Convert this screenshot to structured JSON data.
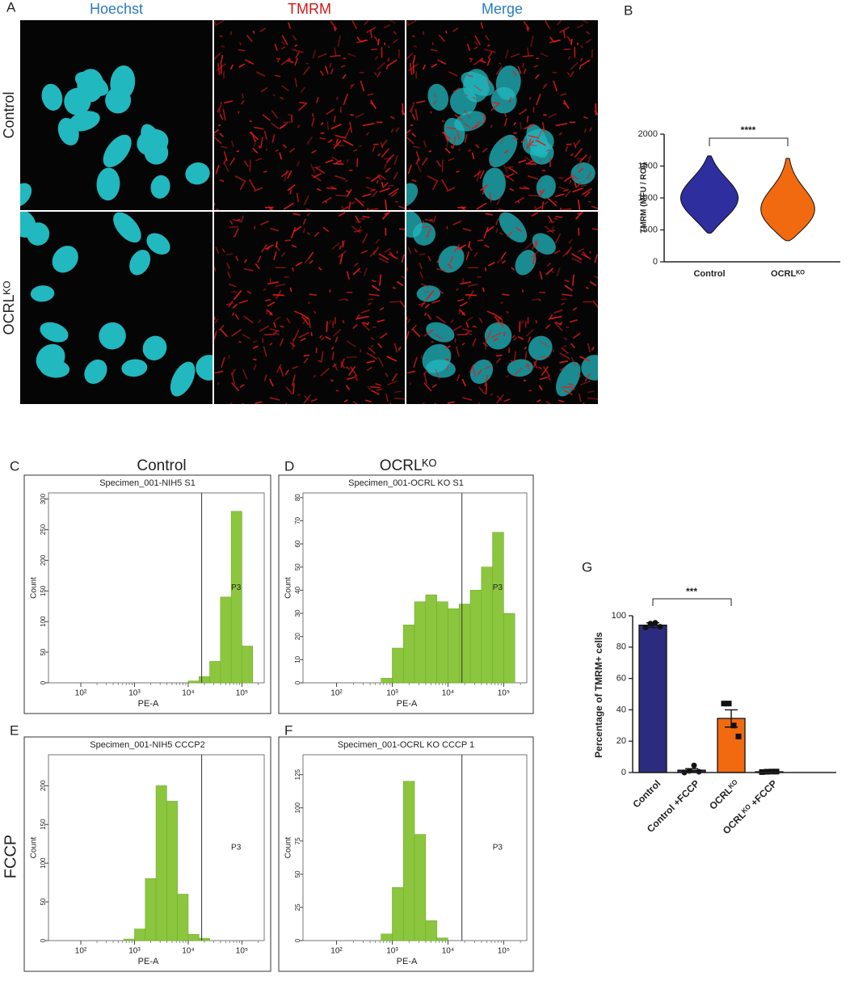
{
  "figure": {
    "letters": [
      "A",
      "B",
      "C",
      "D",
      "E",
      "F",
      "G"
    ],
    "image_headers": [
      "Hoechst",
      "TMRM",
      "Merge"
    ],
    "row_labels": [
      "Control",
      "OCRLᴷᴼ"
    ],
    "hist_headers": [
      "Control",
      "OCRLᴷᴼ"
    ],
    "fccp_label": "FCCP"
  },
  "chart_data": [
    {
      "type": "violin",
      "ylabel": "TMRM (MFU / ROI)",
      "categories": [
        "Control",
        "OCRLᴷᴼ"
      ],
      "series": [
        {
          "name": "Control",
          "color": "#2e2e9e",
          "range": [
            450,
            1660
          ]
        },
        {
          "name": "OCRLᴷᴼ",
          "color": "#f26a0f",
          "range": [
            330,
            1620
          ]
        }
      ],
      "ylim": [
        0,
        2000
      ],
      "yticks": [
        0,
        500,
        1000,
        1500,
        2000
      ],
      "significance": "****"
    },
    {
      "type": "bar",
      "ylabel": "Percentage of  TMRM+ cells",
      "categories": [
        "Control",
        "Control +FCCP",
        "OCRLᴷᴼ",
        "OCRLᴷᴼ +FCCP"
      ],
      "values": [
        94,
        1.5,
        34.5,
        0.5
      ],
      "errors": [
        1.5,
        1,
        5.5,
        0.3
      ],
      "points": [
        [
          92.5,
          95,
          95.5,
          93
        ],
        [
          0,
          1,
          4.5,
          0.5
        ],
        [
          44,
          44,
          30,
          23
        ],
        [
          0.3,
          0.5,
          0.6,
          0.6
        ]
      ],
      "markers": [
        "circle",
        "circle",
        "square",
        "square"
      ],
      "colors": [
        "#2b2b7f",
        "#2b2b7f",
        "#f26a0f",
        "#2b2b7f"
      ],
      "ylim": [
        0,
        100
      ],
      "yticks": [
        0,
        20,
        40,
        60,
        80,
        100
      ],
      "significance": "***"
    },
    {
      "type": "histogram",
      "title": "Specimen_001-NIH5 S1",
      "xlabel": "PE-A",
      "ylabel": "Count",
      "color": "#8cc63f",
      "log_x": true,
      "bins": [
        398,
        631,
        1000,
        1585,
        2512,
        3981,
        6310,
        10000,
        15849,
        25119,
        39811,
        63096,
        100000,
        158489,
        251189
      ],
      "counts": [
        0,
        0,
        0,
        0,
        0,
        0,
        0,
        3,
        10,
        35,
        140,
        280,
        60,
        0
      ],
      "xlim": [
        25,
        260000
      ],
      "xticks": [
        {
          "value": 100,
          "label": "10²"
        },
        {
          "value": 1000,
          "label": "10³"
        },
        {
          "value": 10000,
          "label": "10⁴"
        },
        {
          "value": 100000,
          "label": "10⁵"
        }
      ],
      "ylim": [
        0,
        310
      ],
      "yticks": [
        0,
        50,
        100,
        150,
        200,
        250,
        300
      ],
      "gate": 17800,
      "gate_label": "P3"
    },
    {
      "type": "histogram",
      "title": "Specimen_001-OCRL KO S1",
      "xlabel": "PE-A",
      "ylabel": "Count",
      "color": "#8cc63f",
      "log_x": true,
      "bins": [
        398,
        631,
        1000,
        1585,
        2512,
        3981,
        6310,
        10000,
        15849,
        25119,
        39811,
        63096,
        100000,
        158489,
        251189
      ],
      "counts": [
        0,
        2,
        15,
        25,
        35,
        38,
        35,
        32,
        34,
        40,
        50,
        65,
        30,
        0
      ],
      "xlim": [
        25,
        260000
      ],
      "xticks": [
        {
          "value": 100,
          "label": "10²"
        },
        {
          "value": 1000,
          "label": "10³"
        },
        {
          "value": 10000,
          "label": "10⁴"
        },
        {
          "value": 100000,
          "label": "10⁵"
        }
      ],
      "ylim": [
        0,
        82
      ],
      "yticks": [
        0,
        10,
        20,
        30,
        40,
        50,
        60,
        70,
        80
      ],
      "gate": 17800,
      "gate_label": "P3"
    },
    {
      "type": "histogram",
      "title": "Specimen_001-NIH5 CCCP2",
      "xlabel": "PE-A",
      "ylabel": "Count",
      "color": "#8cc63f",
      "log_x": true,
      "bins": [
        398,
        631,
        1000,
        1585,
        2512,
        3981,
        6310,
        10000,
        15849,
        25119,
        39811,
        63096,
        100000,
        158489,
        251189
      ],
      "counts": [
        0,
        2,
        15,
        80,
        200,
        180,
        60,
        8,
        3,
        0,
        0,
        0,
        0,
        0
      ],
      "xlim": [
        25,
        260000
      ],
      "xticks": [
        {
          "value": 100,
          "label": "10²"
        },
        {
          "value": 1000,
          "label": "10³"
        },
        {
          "value": 10000,
          "label": "10⁴"
        },
        {
          "value": 100000,
          "label": "10⁵"
        }
      ],
      "ylim": [
        0,
        240
      ],
      "yticks": [
        0,
        50,
        100,
        150,
        200
      ],
      "gate": 17800,
      "gate_label": "P3"
    },
    {
      "type": "histogram",
      "title": "Specimen_001-OCRL KO CCCP 1",
      "xlabel": "PE-A",
      "ylabel": "Count",
      "color": "#8cc63f",
      "log_x": true,
      "bins": [
        398,
        631,
        1000,
        1585,
        2512,
        3981,
        6310,
        10000,
        15849,
        25119,
        39811,
        63096,
        100000,
        158489,
        251189
      ],
      "counts": [
        0,
        5,
        40,
        120,
        80,
        15,
        2,
        0,
        0,
        0,
        0,
        0,
        0,
        0
      ],
      "xlim": [
        25,
        260000
      ],
      "xticks": [
        {
          "value": 100,
          "label": "10²"
        },
        {
          "value": 1000,
          "label": "10³"
        },
        {
          "value": 10000,
          "label": "10⁴"
        },
        {
          "value": 100000,
          "label": "10⁵"
        }
      ],
      "ylim": [
        0,
        140
      ],
      "yticks": [
        0,
        25,
        50,
        75,
        100,
        125
      ],
      "gate": 17800,
      "gate_label": "P3"
    }
  ]
}
